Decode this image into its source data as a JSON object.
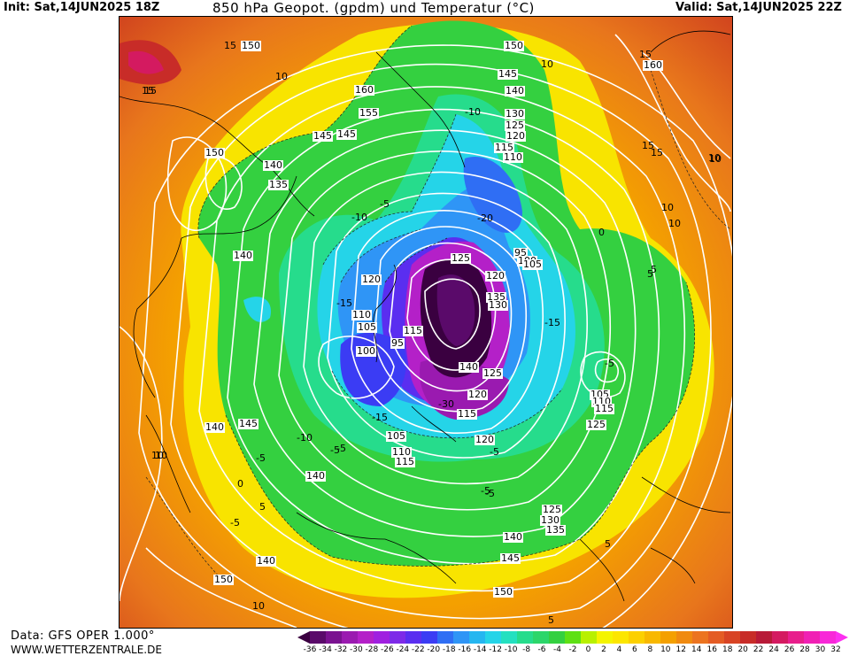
{
  "header": {
    "init": "Init: Sat,14JUN2025 18Z",
    "title": "850 hPa Geopot. (gpdm) und Temperatur (°C)",
    "valid": "Valid: Sat,14JUN2025 22Z"
  },
  "footer": {
    "data_source": "Data: GFS OPER 1.000°",
    "website": "WWW.WETTERZENTRALE.DE"
  },
  "legend": {
    "ticks": [
      "-36",
      "-34",
      "-32",
      "-30",
      "-28",
      "-26",
      "-24",
      "-22",
      "-20",
      "-18",
      "-16",
      "-14",
      "-12",
      "-10",
      "-8",
      "-6",
      "-4",
      "-2",
      "0",
      "2",
      "4",
      "6",
      "8",
      "10",
      "12",
      "14",
      "16",
      "18",
      "20",
      "22",
      "24",
      "26",
      "28",
      "30",
      "32"
    ],
    "colors": [
      "#3a0040",
      "#5a0a6a",
      "#7a1290",
      "#9a1ab0",
      "#b420c8",
      "#a020e0",
      "#7d2ae8",
      "#5a2ef0",
      "#3b3cf4",
      "#2f6ef4",
      "#2f95f6",
      "#25b6f0",
      "#25d4e8",
      "#24e0c0",
      "#26dc8c",
      "#2cd66a",
      "#34d040",
      "#5ee014",
      "#b8f000",
      "#f4f400",
      "#fce600",
      "#fcd000",
      "#f8b800",
      "#f4a000",
      "#f08a10",
      "#ec7420",
      "#e45c24",
      "#d84424",
      "#c82c28",
      "#b81a38",
      "#d41a60",
      "#e81e8c",
      "#f020b4",
      "#f828d8",
      "#fc30f0"
    ]
  },
  "map": {
    "geopotential_labels": [
      "150",
      "160",
      "155",
      "145",
      "140",
      "135",
      "150",
      "140",
      "120",
      "110",
      "105",
      "115",
      "95",
      "100",
      "125",
      "120",
      "135",
      "130",
      "95",
      "100",
      "105",
      "140",
      "125",
      "120",
      "115",
      "120",
      "105",
      "110",
      "115",
      "125",
      "145",
      "140",
      "140",
      "105",
      "110",
      "115",
      "140",
      "125",
      "130",
      "135",
      "140",
      "145",
      "150",
      "145",
      "150",
      "150",
      "145",
      "140",
      "130",
      "125",
      "120",
      "115",
      "110",
      "160"
    ],
    "temperature_labels": [
      "10",
      "15",
      "10",
      "15",
      "10",
      "15",
      "-5",
      "-10",
      "-20",
      "-10",
      "-5",
      "-15",
      "-30",
      "-15",
      "-10",
      "-5",
      "-15",
      "-5",
      "0",
      "5",
      "10",
      "-5",
      "-5",
      "-5",
      "10",
      "10",
      "15",
      "5",
      "5",
      "-5",
      "0",
      "-5",
      "5",
      "10",
      "10",
      "5",
      "15",
      "10",
      "15"
    ]
  }
}
